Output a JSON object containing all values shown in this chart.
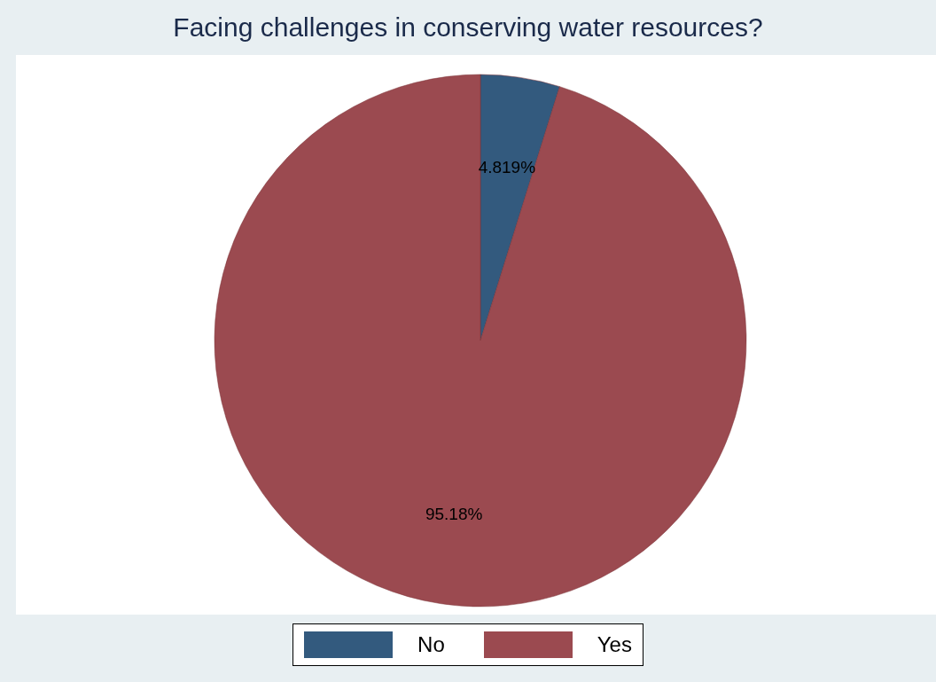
{
  "chart_data": {
    "type": "pie",
    "title": "Facing challenges in conserving water resources?",
    "categories": [
      "No",
      "Yes"
    ],
    "values": [
      4.819,
      95.18
    ],
    "colors": [
      "#335a7e",
      "#9b4a50"
    ],
    "value_labels": [
      "4.819%",
      "95.18%"
    ],
    "legend": "bottom"
  }
}
